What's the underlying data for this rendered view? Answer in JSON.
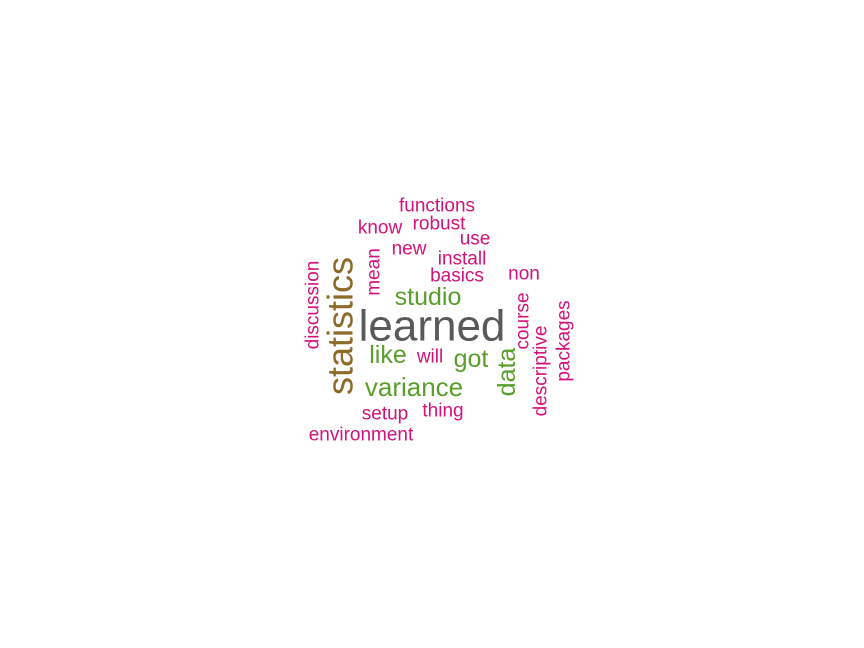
{
  "colors": {
    "gray": "#595959",
    "brown": "#8c6a2a",
    "green": "#5a9e2a",
    "pink": "#d4127a"
  },
  "words": [
    {
      "text": "learned",
      "weight": 5,
      "color": "gray"
    },
    {
      "text": "statistics",
      "weight": 4,
      "color": "brown"
    },
    {
      "text": "variance",
      "weight": 3,
      "color": "green"
    },
    {
      "text": "studio",
      "weight": 3,
      "color": "green"
    },
    {
      "text": "like",
      "weight": 3,
      "color": "green"
    },
    {
      "text": "got",
      "weight": 3,
      "color": "green"
    },
    {
      "text": "data",
      "weight": 3,
      "color": "green"
    },
    {
      "text": "functions",
      "weight": 1,
      "color": "pink"
    },
    {
      "text": "robust",
      "weight": 1,
      "color": "pink"
    },
    {
      "text": "know",
      "weight": 1,
      "color": "pink"
    },
    {
      "text": "use",
      "weight": 1,
      "color": "pink"
    },
    {
      "text": "new",
      "weight": 1,
      "color": "pink"
    },
    {
      "text": "install",
      "weight": 1,
      "color": "pink"
    },
    {
      "text": "basics",
      "weight": 1,
      "color": "pink"
    },
    {
      "text": "non",
      "weight": 1,
      "color": "pink"
    },
    {
      "text": "mean",
      "weight": 1,
      "color": "pink"
    },
    {
      "text": "discussion",
      "weight": 1,
      "color": "pink"
    },
    {
      "text": "course",
      "weight": 1,
      "color": "pink"
    },
    {
      "text": "will",
      "weight": 1,
      "color": "pink"
    },
    {
      "text": "descriptive",
      "weight": 1,
      "color": "pink"
    },
    {
      "text": "packages",
      "weight": 1,
      "color": "pink"
    },
    {
      "text": "setup",
      "weight": 1,
      "color": "pink"
    },
    {
      "text": "thing",
      "weight": 1,
      "color": "pink"
    },
    {
      "text": "environment",
      "weight": 1,
      "color": "pink"
    }
  ]
}
